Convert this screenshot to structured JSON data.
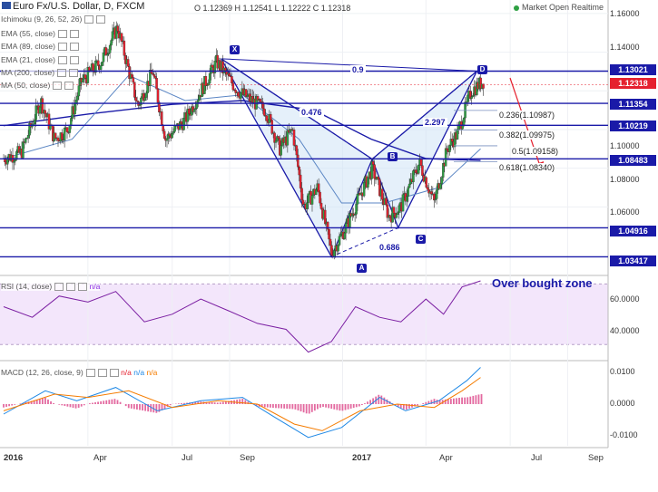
{
  "header": {
    "title": "Euro Fx/U.S. Dollar, D, FXCM",
    "ohlc": "O 1.12369 H 1.12541 L 1.12222 C 1.12318",
    "status": "Market Open Realtime"
  },
  "indicators": [
    {
      "label": "Ichimoku (9, 26, 52, 26)"
    },
    {
      "label": "EMA (55, close)"
    },
    {
      "label": "EMA (89, close)"
    },
    {
      "label": "EMA (21, close)"
    },
    {
      "label": "MA (200, close)"
    },
    {
      "label": "MA (50, close)"
    }
  ],
  "price_tags": [
    {
      "value": "1.13021",
      "price": 1.13021,
      "current": false
    },
    {
      "value": "1.12318",
      "price": 1.12318,
      "current": true
    },
    {
      "value": "1.11354",
      "price": 1.11354,
      "current": false
    },
    {
      "value": "1.10219",
      "price": 1.10219,
      "current": false
    },
    {
      "value": "1.08483",
      "price": 1.08483,
      "current": false
    },
    {
      "value": "1.04916",
      "price": 1.04916,
      "current": false
    },
    {
      "value": "1.03417",
      "price": 1.03417,
      "current": false
    }
  ],
  "fib_labels": [
    {
      "text": "0.236(1.10987)",
      "price": 1.10987
    },
    {
      "text": "0.382(1.09975)",
      "price": 1.09975
    },
    {
      "text": "0.5(1.09158)",
      "price": 1.09158
    },
    {
      "text": "0.618(1.08340)",
      "price": 1.0834
    }
  ],
  "pattern_ratios": [
    "0.9",
    "0.476",
    "2.297",
    "0.686"
  ],
  "pattern_points": [
    "X",
    "A",
    "B",
    "C",
    "D"
  ],
  "rsi": {
    "label": "RSI (14, close)",
    "na": "n/a",
    "upper": "60.0000",
    "lower": "40.0000",
    "annotation": "Over bought zone"
  },
  "macd": {
    "label": "MACD (12, 26, close, 9)",
    "na1": "n/a",
    "na2": "n/a",
    "na3": "n/a",
    "ticks": [
      "0.0100",
      "0.0000",
      "-0.0100"
    ]
  },
  "chart_data": {
    "type": "candlestick",
    "title": "Euro Fx/U.S. Dollar, D, FXCM",
    "x_labels": [
      "2016",
      "Apr",
      "Jul",
      "Sep",
      "2017",
      "Apr",
      "Jul",
      "Sep"
    ],
    "y_ticks": [
      "1.16000",
      "1.14000",
      "1.12000",
      "1.10000",
      "1.08000",
      "1.06000"
    ],
    "ylim": [
      1.025,
      1.167
    ],
    "trend": [
      [
        "2016-01-01",
        1.085
      ],
      [
        "2016-01-20",
        1.088
      ],
      [
        "2016-02-10",
        1.115
      ],
      [
        "2016-02-25",
        1.095
      ],
      [
        "2016-03-10",
        1.1
      ],
      [
        "2016-03-25",
        1.125
      ],
      [
        "2016-04-15",
        1.135
      ],
      [
        "2016-05-03",
        1.153
      ],
      [
        "2016-05-25",
        1.112
      ],
      [
        "2016-06-10",
        1.13
      ],
      [
        "2016-06-24",
        1.095
      ],
      [
        "2016-07-15",
        1.105
      ],
      [
        "2016-08-18",
        1.135
      ],
      [
        "2016-09-10",
        1.12
      ],
      [
        "2016-10-10",
        1.11
      ],
      [
        "2016-10-25",
        1.09
      ],
      [
        "2016-11-08",
        1.1
      ],
      [
        "2016-11-20",
        1.06
      ],
      [
        "2016-12-05",
        1.07
      ],
      [
        "2016-12-20",
        1.036
      ],
      [
        "2017-01-05",
        1.05
      ],
      [
        "2017-02-02",
        1.08
      ],
      [
        "2017-02-20",
        1.055
      ],
      [
        "2017-03-05",
        1.06
      ],
      [
        "2017-03-25",
        1.083
      ],
      [
        "2017-04-10",
        1.062
      ],
      [
        "2017-04-24",
        1.09
      ],
      [
        "2017-05-05",
        1.098
      ],
      [
        "2017-05-20",
        1.12
      ],
      [
        "2017-06-02",
        1.125
      ]
    ],
    "ma50": [
      [
        "2016-01-01",
        1.085
      ],
      [
        "2016-03-15",
        1.095
      ],
      [
        "2016-05-15",
        1.128
      ],
      [
        "2016-07-15",
        1.115
      ],
      [
        "2016-09-15",
        1.118
      ],
      [
        "2016-11-15",
        1.095
      ],
      [
        "2016-12-31",
        1.062
      ],
      [
        "2017-02-15",
        1.062
      ],
      [
        "2017-04-15",
        1.07
      ],
      [
        "2017-05-30",
        1.09
      ]
    ],
    "ma200": [
      [
        "2016-01-01",
        1.102
      ],
      [
        "2016-04-01",
        1.108
      ],
      [
        "2016-07-01",
        1.113
      ],
      [
        "2016-09-15",
        1.115
      ],
      [
        "2016-12-01",
        1.11
      ],
      [
        "2017-02-01",
        1.095
      ],
      [
        "2017-04-01",
        1.085
      ],
      [
        "2017-05-30",
        1.084
      ]
    ],
    "harmonic_pattern": {
      "X": [
        "2016-08-23",
        1.1366
      ],
      "A": [
        "2016-12-20",
        1.0342
      ],
      "B": [
        "2017-02-02",
        1.0847
      ],
      "C": [
        "2017-03-02",
        1.0492
      ],
      "D": [
        "2017-05-26",
        1.1302
      ]
    },
    "rsi_ylim": [
      20,
      75
    ],
    "rsi": [
      [
        "2016-01-01",
        55
      ],
      [
        "2016-02-01",
        48
      ],
      [
        "2016-03-01",
        62
      ],
      [
        "2016-04-01",
        58
      ],
      [
        "2016-05-01",
        65
      ],
      [
        "2016-06-01",
        45
      ],
      [
        "2016-07-01",
        50
      ],
      [
        "2016-08-01",
        60
      ],
      [
        "2016-09-01",
        52
      ],
      [
        "2016-10-01",
        44
      ],
      [
        "2016-11-01",
        40
      ],
      [
        "2016-11-25",
        25
      ],
      [
        "2016-12-20",
        32
      ],
      [
        "2017-01-15",
        55
      ],
      [
        "2017-02-10",
        48
      ],
      [
        "2017-03-05",
        45
      ],
      [
        "2017-04-01",
        60
      ],
      [
        "2017-04-20",
        50
      ],
      [
        "2017-05-10",
        68
      ],
      [
        "2017-05-30",
        72
      ]
    ],
    "macd_ylim": [
      -0.0125,
      0.0125
    ],
    "macd": [
      [
        "2016-01-01",
        -0.003
      ],
      [
        "2016-02-15",
        0.004
      ],
      [
        "2016-03-20",
        0.001
      ],
      [
        "2016-05-01",
        0.005
      ],
      [
        "2016-06-15",
        -0.002
      ],
      [
        "2016-08-01",
        0.001
      ],
      [
        "2016-09-15",
        0.002
      ],
      [
        "2016-10-20",
        -0.004
      ],
      [
        "2016-11-25",
        -0.01
      ],
      [
        "2016-12-31",
        -0.007
      ],
      [
        "2017-02-10",
        0.002
      ],
      [
        "2017-03-10",
        -0.002
      ],
      [
        "2017-04-15",
        0.001
      ],
      [
        "2017-05-15",
        0.007
      ],
      [
        "2017-05-30",
        0.011
      ]
    ],
    "macd_signal": [
      [
        "2016-01-01",
        -0.002
      ],
      [
        "2016-02-25",
        0.003
      ],
      [
        "2016-04-01",
        0.002
      ],
      [
        "2016-05-15",
        0.004
      ],
      [
        "2016-07-01",
        -0.001
      ],
      [
        "2016-08-20",
        0.001
      ],
      [
        "2016-10-01",
        0.0
      ],
      [
        "2016-11-10",
        -0.006
      ],
      [
        "2016-12-10",
        -0.008
      ],
      [
        "2017-01-20",
        -0.002
      ],
      [
        "2017-03-01",
        0.0
      ],
      [
        "2017-04-10",
        -0.001
      ],
      [
        "2017-05-10",
        0.004
      ],
      [
        "2017-05-30",
        0.008
      ]
    ]
  },
  "colors": {
    "blue_line": "#1a1aa8",
    "red": "#e5202e",
    "up": "#2e9e44",
    "down": "#e5202e"
  }
}
